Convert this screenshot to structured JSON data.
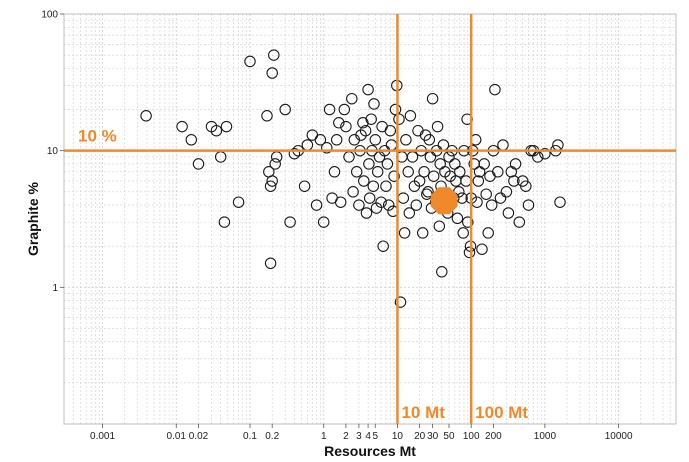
{
  "chart_data": {
    "type": "scatter",
    "title": "",
    "xlabel": "Resources Mt",
    "ylabel": "Graphite %",
    "xscale": "log",
    "yscale": "log",
    "xlim": [
      0.0003,
      60000
    ],
    "ylim": [
      0.1,
      100
    ],
    "grid": true,
    "x_ticks": [
      {
        "value": 0.001,
        "label": "0.001"
      },
      {
        "value": 0.01,
        "label": "0.01"
      },
      {
        "value": 0.02,
        "label": "0.02"
      },
      {
        "value": 0.1,
        "label": "0.1"
      },
      {
        "value": 0.2,
        "label": "0.2"
      },
      {
        "value": 1,
        "label": "1"
      },
      {
        "value": 2,
        "label": "2"
      },
      {
        "value": 3,
        "label": "3"
      },
      {
        "value": 4,
        "label": "4"
      },
      {
        "value": 5,
        "label": "5"
      },
      {
        "value": 10,
        "label": "10"
      },
      {
        "value": 20,
        "label": "20"
      },
      {
        "value": 30,
        "label": "30"
      },
      {
        "value": 50,
        "label": "50"
      },
      {
        "value": 100,
        "label": "100"
      },
      {
        "value": 200,
        "label": "200"
      },
      {
        "value": 1000,
        "label": "1000"
      },
      {
        "value": 10000,
        "label": "10000"
      }
    ],
    "y_ticks": [
      {
        "value": 1,
        "label": "1"
      },
      {
        "value": 10,
        "label": "10"
      },
      {
        "value": 100,
        "label": "100"
      }
    ],
    "reference_lines": [
      {
        "axis": "y",
        "value": 10,
        "label": "10 %"
      },
      {
        "axis": "x",
        "value": 10,
        "label": "10 Mt"
      },
      {
        "axis": "x",
        "value": 100,
        "label": "100 Mt"
      }
    ],
    "colors": {
      "accent": "#f0892a",
      "marker": "#1a1a1a",
      "grid": "#cfcfcf"
    },
    "highlight": {
      "x": 43,
      "y": 4.3
    },
    "points": [
      [
        0.0039,
        18
      ],
      [
        0.012,
        15
      ],
      [
        0.016,
        12
      ],
      [
        0.02,
        8
      ],
      [
        0.03,
        15
      ],
      [
        0.035,
        14
      ],
      [
        0.04,
        9
      ],
      [
        0.045,
        3
      ],
      [
        0.048,
        15
      ],
      [
        0.07,
        4.2
      ],
      [
        0.1,
        45
      ],
      [
        0.17,
        18
      ],
      [
        0.18,
        7
      ],
      [
        0.19,
        5.5
      ],
      [
        0.19,
        1.5
      ],
      [
        0.2,
        37
      ],
      [
        0.21,
        50
      ],
      [
        0.22,
        8
      ],
      [
        0.23,
        9
      ],
      [
        0.2,
        6
      ],
      [
        0.3,
        20
      ],
      [
        0.35,
        3
      ],
      [
        0.4,
        9.5
      ],
      [
        0.45,
        10
      ],
      [
        0.55,
        5.5
      ],
      [
        0.6,
        11
      ],
      [
        0.7,
        13
      ],
      [
        0.8,
        4
      ],
      [
        0.9,
        12
      ],
      [
        1.0,
        3
      ],
      [
        1.1,
        10.5
      ],
      [
        1.2,
        20
      ],
      [
        1.3,
        4.5
      ],
      [
        1.4,
        7
      ],
      [
        1.5,
        12
      ],
      [
        1.6,
        16
      ],
      [
        1.7,
        4.2
      ],
      [
        1.9,
        20
      ],
      [
        2.0,
        15
      ],
      [
        2.2,
        9
      ],
      [
        2.4,
        24
      ],
      [
        2.5,
        5
      ],
      [
        2.6,
        12
      ],
      [
        2.8,
        7
      ],
      [
        3.0,
        4
      ],
      [
        3.1,
        10
      ],
      [
        3.2,
        13
      ],
      [
        3.4,
        16
      ],
      [
        3.5,
        6
      ],
      [
        3.7,
        14
      ],
      [
        3.8,
        3.5
      ],
      [
        4.0,
        28
      ],
      [
        4.1,
        8
      ],
      [
        4.2,
        4.5
      ],
      [
        4.4,
        17
      ],
      [
        4.5,
        10
      ],
      [
        4.7,
        5.5
      ],
      [
        4.8,
        22
      ],
      [
        5.0,
        12
      ],
      [
        5.2,
        3.8
      ],
      [
        5.4,
        7
      ],
      [
        5.7,
        9
      ],
      [
        6.0,
        4.2
      ],
      [
        6.2,
        15
      ],
      [
        6.4,
        2
      ],
      [
        6.7,
        10
      ],
      [
        7.0,
        5.5
      ],
      [
        7.3,
        8
      ],
      [
        7.6,
        4
      ],
      [
        8.0,
        14
      ],
      [
        8.3,
        11
      ],
      [
        8.7,
        3.6
      ],
      [
        9.0,
        6.5
      ],
      [
        9.4,
        20
      ],
      [
        9.8,
        30
      ],
      [
        10.5,
        17
      ],
      [
        11,
        0.78
      ],
      [
        11.5,
        9
      ],
      [
        12,
        4.5
      ],
      [
        12.5,
        2.5
      ],
      [
        13,
        12
      ],
      [
        14,
        7
      ],
      [
        14.5,
        3.5
      ],
      [
        15,
        18
      ],
      [
        16,
        9
      ],
      [
        17,
        5.5
      ],
      [
        18,
        4
      ],
      [
        19,
        14
      ],
      [
        20,
        6
      ],
      [
        21,
        10
      ],
      [
        22,
        2.5
      ],
      [
        23,
        7
      ],
      [
        24,
        13
      ],
      [
        25,
        4.8
      ],
      [
        26,
        5
      ],
      [
        27,
        12
      ],
      [
        28,
        9
      ],
      [
        29,
        3.8
      ],
      [
        30,
        24
      ],
      [
        31,
        6.5
      ],
      [
        33,
        4.2
      ],
      [
        34,
        10
      ],
      [
        35,
        15
      ],
      [
        37,
        2.8
      ],
      [
        38,
        8
      ],
      [
        39,
        5.5
      ],
      [
        40,
        1.3
      ],
      [
        42,
        11
      ],
      [
        44,
        7
      ],
      [
        46,
        4
      ],
      [
        48,
        3.5
      ],
      [
        50,
        9
      ],
      [
        52,
        6.5
      ],
      [
        55,
        10
      ],
      [
        58,
        4.5
      ],
      [
        60,
        8
      ],
      [
        62,
        6
      ],
      [
        65,
        3.2
      ],
      [
        68,
        5
      ],
      [
        70,
        7
      ],
      [
        75,
        4.5
      ],
      [
        78,
        2.5
      ],
      [
        80,
        10
      ],
      [
        85,
        6
      ],
      [
        88,
        17
      ],
      [
        90,
        3
      ],
      [
        95,
        1.8
      ],
      [
        98,
        2
      ],
      [
        100,
        4.5
      ],
      [
        105,
        10
      ],
      [
        110,
        8
      ],
      [
        115,
        12
      ],
      [
        120,
        4.2
      ],
      [
        125,
        6
      ],
      [
        130,
        7
      ],
      [
        140,
        1.9
      ],
      [
        150,
        8
      ],
      [
        160,
        4.8
      ],
      [
        170,
        2.5
      ],
      [
        180,
        6.5
      ],
      [
        190,
        4
      ],
      [
        200,
        10
      ],
      [
        210,
        28
      ],
      [
        230,
        7
      ],
      [
        250,
        4.5
      ],
      [
        270,
        11
      ],
      [
        300,
        5
      ],
      [
        320,
        3.5
      ],
      [
        350,
        7
      ],
      [
        380,
        6
      ],
      [
        400,
        8
      ],
      [
        450,
        3
      ],
      [
        500,
        6
      ],
      [
        550,
        5.5
      ],
      [
        600,
        4
      ],
      [
        650,
        10
      ],
      [
        700,
        10
      ],
      [
        800,
        9
      ],
      [
        1000,
        9.5
      ],
      [
        1400,
        10
      ],
      [
        1500,
        11
      ],
      [
        1600,
        4.2
      ]
    ]
  }
}
